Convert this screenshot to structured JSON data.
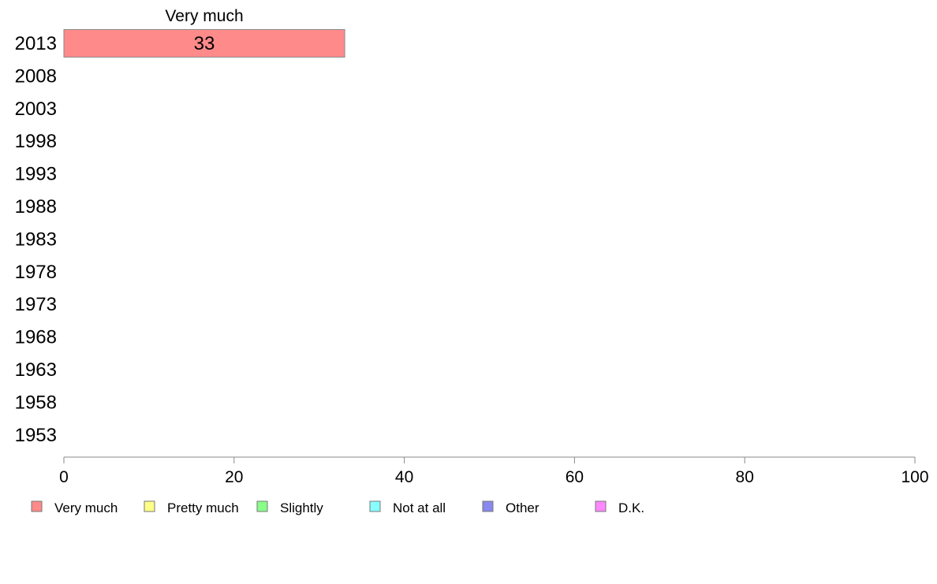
{
  "chart_data": {
    "type": "bar",
    "orientation": "horizontal",
    "stacked": true,
    "categories": [
      "2013",
      "2008",
      "2003",
      "1998",
      "1993",
      "1988",
      "1983",
      "1978",
      "1973",
      "1968",
      "1963",
      "1958",
      "1953"
    ],
    "series": [
      {
        "name": "Very much",
        "color": "#ff8a8a",
        "values": [
          33,
          null,
          null,
          null,
          null,
          null,
          null,
          null,
          null,
          null,
          null,
          null,
          null
        ]
      },
      {
        "name": "Pretty much",
        "color": "#ffff88",
        "values": [
          null,
          null,
          null,
          null,
          null,
          null,
          null,
          null,
          null,
          null,
          null,
          null,
          null
        ]
      },
      {
        "name": "Slightly",
        "color": "#88ff88",
        "values": [
          null,
          null,
          null,
          null,
          null,
          null,
          null,
          null,
          null,
          null,
          null,
          null,
          null
        ]
      },
      {
        "name": "Not at all",
        "color": "#88ffff",
        "values": [
          null,
          null,
          null,
          null,
          null,
          null,
          null,
          null,
          null,
          null,
          null,
          null,
          null
        ]
      },
      {
        "name": "Other",
        "color": "#8888ee",
        "values": [
          null,
          null,
          null,
          null,
          null,
          null,
          null,
          null,
          null,
          null,
          null,
          null,
          null
        ]
      },
      {
        "name": "D.K.",
        "color": "#ff88ff",
        "values": [
          null,
          null,
          null,
          null,
          null,
          null,
          null,
          null,
          null,
          null,
          null,
          null,
          null
        ]
      }
    ],
    "segment_header": "Very much",
    "xlim": [
      0,
      100
    ],
    "xticks": [
      0,
      20,
      40,
      60,
      80,
      100
    ],
    "grid": false,
    "legend_position": "bottom",
    "title": "",
    "xlabel": "",
    "ylabel": ""
  }
}
